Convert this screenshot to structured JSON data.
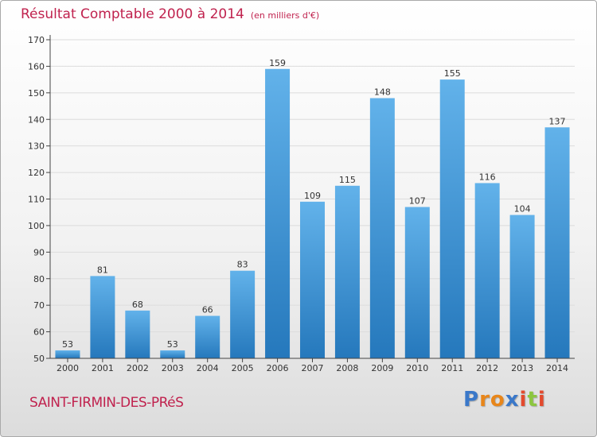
{
  "title": "Résultat Comptable 2000 à 2014",
  "unit": "(en milliers d'€)",
  "commune": "SAINT-FIRMIN-DES-PRéS",
  "logo": {
    "text": "Proxiti",
    "colors": [
      "#3a78c9",
      "#e8861a",
      "#e8861a",
      "#3a78c9",
      "#e34a2d",
      "#8cc63f",
      "#e34a2d"
    ]
  },
  "colors": {
    "bar_light": "#62b2ea",
    "bar_dark": "#2578bc",
    "grid": "#dcdcdc",
    "axis": "#444444"
  },
  "chart_data": {
    "type": "bar",
    "title": "Résultat Comptable 2000 à 2014",
    "xlabel": "",
    "ylabel": "",
    "categories": [
      "2000",
      "2001",
      "2002",
      "2003",
      "2004",
      "2005",
      "2006",
      "2007",
      "2008",
      "2009",
      "2010",
      "2011",
      "2012",
      "2013",
      "2014"
    ],
    "values": [
      53,
      81,
      68,
      53,
      66,
      83,
      159,
      109,
      115,
      148,
      107,
      155,
      116,
      104,
      137
    ],
    "ylim": [
      50,
      170
    ],
    "yticks": [
      50,
      60,
      70,
      80,
      90,
      100,
      110,
      120,
      130,
      140,
      150,
      160,
      170
    ],
    "grid": true
  }
}
